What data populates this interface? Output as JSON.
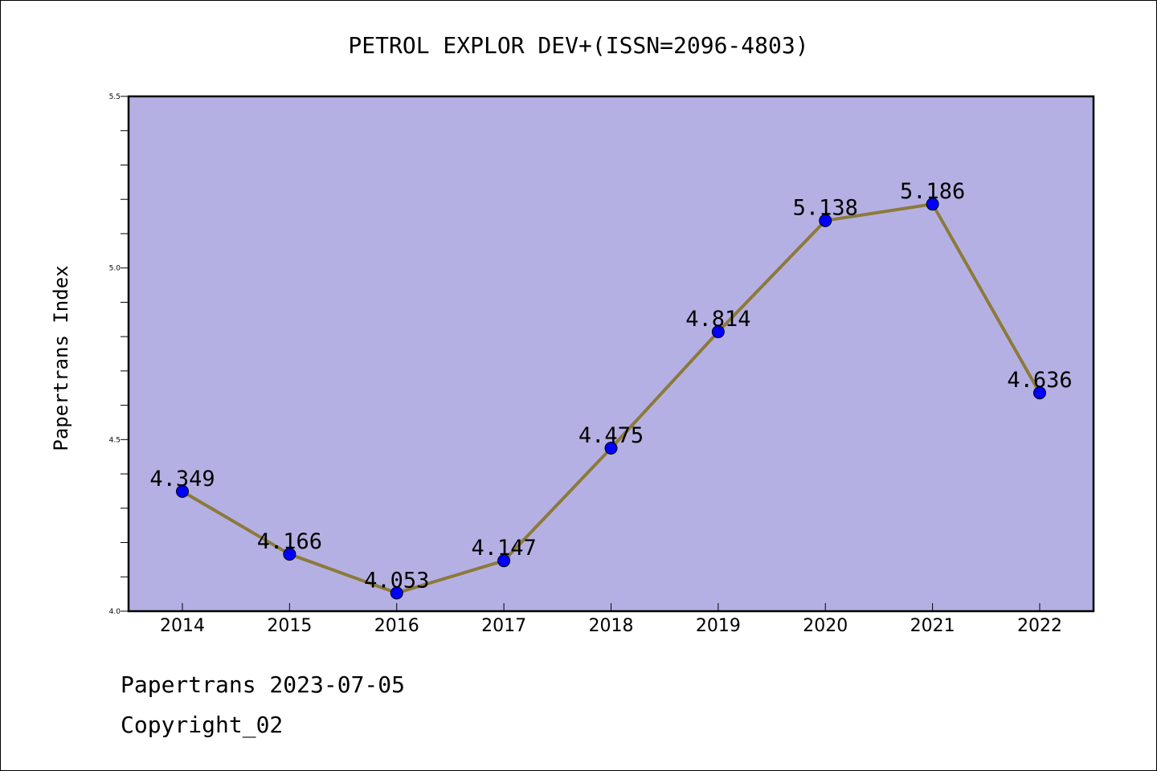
{
  "chart_data": {
    "type": "line",
    "title": "PETROL EXPLOR DEV+(ISSN=2096-4803)",
    "xlabel": "",
    "ylabel": "Papertrans Index",
    "categories": [
      "2014",
      "2015",
      "2016",
      "2017",
      "2018",
      "2019",
      "2020",
      "2021",
      "2022"
    ],
    "values": [
      4.349,
      4.166,
      4.053,
      4.147,
      4.475,
      4.814,
      5.138,
      5.186,
      4.636
    ],
    "data_labels": [
      "4.349",
      "4.166",
      "4.053",
      "4.147",
      "4.475",
      "4.814",
      "5.138",
      "5.186",
      "4.636"
    ],
    "ylim": [
      4.0,
      5.5
    ],
    "yticks": [
      4.0,
      4.5,
      5.0,
      5.5
    ],
    "ytick_labels": [
      "4.0",
      "4.5",
      "5.0",
      "5.5"
    ],
    "grid": false,
    "colors": {
      "plot_background": "#b5b0e3",
      "line": "#8b7a3a",
      "marker": "#0000ff"
    }
  },
  "footer": {
    "line1": "Papertrans 2023-07-05",
    "line2": "Copyright_02"
  }
}
